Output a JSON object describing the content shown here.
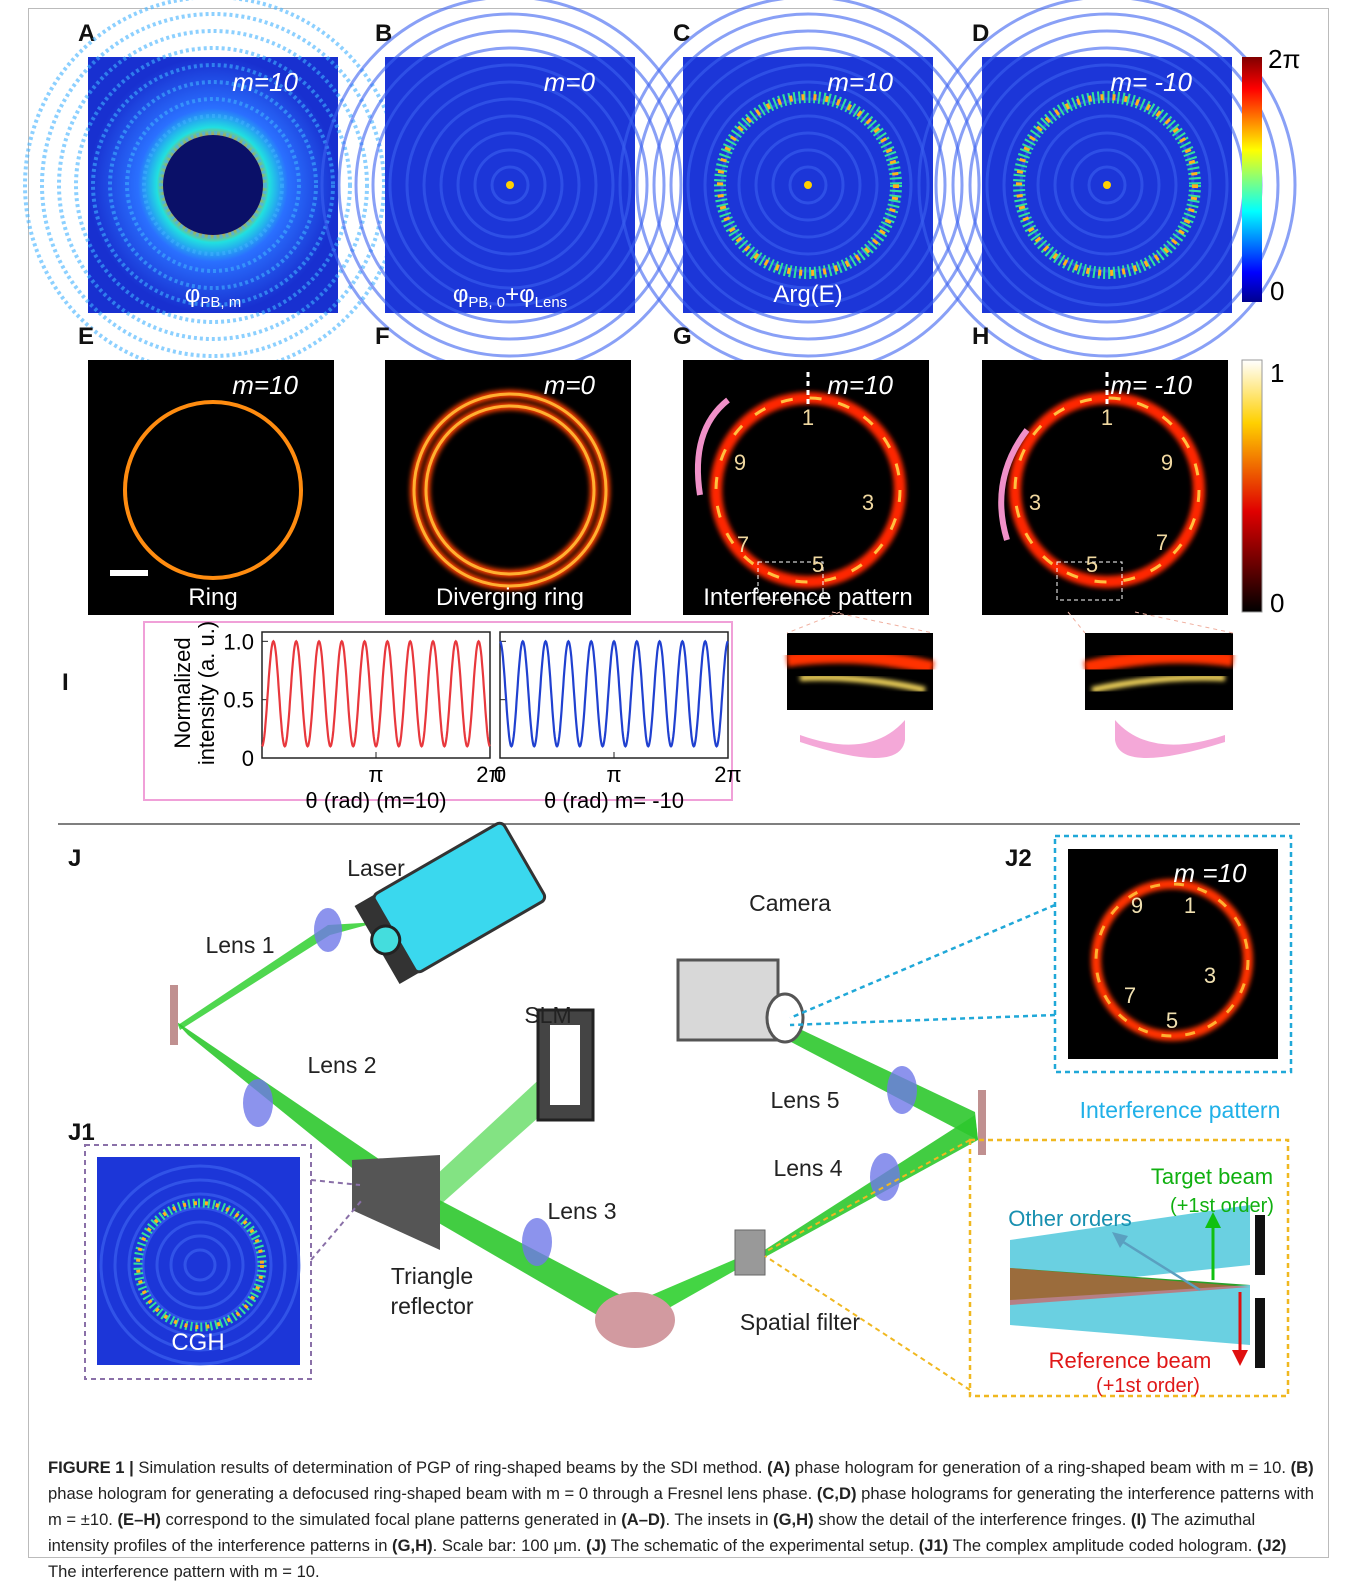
{
  "panels": [
    {
      "label": "A",
      "annotation": "m=10",
      "caption": [
        {
          "text": "φ"
        },
        {
          "sub": "PB, m"
        }
      ]
    },
    {
      "label": "B",
      "annotation": "m=0",
      "caption": [
        {
          "text": "φ"
        },
        {
          "sub": "PB, 0"
        },
        {
          "text": "+φ"
        },
        {
          "sub": "Lens"
        }
      ]
    },
    {
      "label": "C",
      "annotation": "m=10",
      "caption": [
        {
          "text": "Arg(E)"
        }
      ]
    },
    {
      "label": "D",
      "annotation": "m= -10",
      "caption": []
    },
    {
      "label": "E",
      "annotation": "m=10",
      "caption": [
        {
          "text": "Ring"
        }
      ]
    },
    {
      "label": "F",
      "annotation": "m=0",
      "caption": [
        {
          "text": "Diverging ring"
        }
      ]
    },
    {
      "label": "G",
      "annotation": "m=10",
      "caption": [
        {
          "text": "Interference pattern"
        }
      ],
      "numbers": [
        "1",
        "3",
        "5",
        "7",
        "9"
      ]
    },
    {
      "label": "H",
      "annotation": "m= -10",
      "caption": [],
      "numbers": [
        "1",
        "9",
        "7",
        "5",
        "3"
      ]
    }
  ],
  "colorbars": [
    {
      "max": "2π",
      "min": "0"
    },
    {
      "max": "1",
      "min": "0"
    }
  ],
  "panel_i": {
    "label": "I",
    "ylabel": [
      "Normalized",
      "intensity (a. u.)"
    ],
    "plots": [
      {
        "xlabel": "θ (rad)  (m=10)",
        "color": "#e8383d",
        "cycles": 10,
        "phase": 3.1416,
        "min": 0.1,
        "max": 1.0,
        "xlim": [
          0,
          6.2832
        ],
        "ylim": [
          0,
          1.08
        ],
        "xticks": [
          {
            "value": 3.1416,
            "label": "π"
          },
          {
            "value": 6.2832,
            "label": "2π"
          }
        ],
        "yticks": [
          0,
          {
            "value": 0.5,
            "label": "0.5"
          },
          {
            "value": 1,
            "label": "1.0"
          }
        ],
        "show_ytick_labels": true
      },
      {
        "xlabel": "θ (rad)  m= -10",
        "color": "#2040d0",
        "cycles": 10,
        "phase": 0,
        "min": 0.1,
        "max": 1.0,
        "xlim": [
          0,
          6.2832
        ],
        "ylim": [
          0,
          1.08
        ],
        "xticks": [
          0,
          {
            "value": 3.1416,
            "label": "π"
          },
          {
            "value": 6.2832,
            "label": "2π"
          }
        ],
        "yticks": [
          0,
          0.5,
          1
        ],
        "show_ytick_labels": false
      }
    ]
  },
  "setup": {
    "label": "J",
    "components": {
      "laser": "Laser",
      "lens1": "Lens 1",
      "lens2": "Lens 2",
      "lens3": "Lens 3",
      "lens4": "Lens 4",
      "lens5": "Lens 5",
      "slm": "SLM",
      "camera": "Camera",
      "triangle": [
        "Triangle",
        "reflector"
      ],
      "filter": "Spatial filter"
    },
    "j1": {
      "label": "J1",
      "caption": "CGH"
    },
    "j2": {
      "label": "J2",
      "annotation": "m =10",
      "numbers": [
        "1",
        "3",
        "5",
        "7",
        "9"
      ],
      "caption": "Interference pattern"
    },
    "filter_inset": {
      "target": [
        "Target beam",
        "(+1st order)"
      ],
      "other": "Other orders",
      "reference": [
        "Reference beam",
        "(+1st order)"
      ]
    }
  },
  "caption": [
    {
      "text": "FIGURE 1 |",
      "bold": true
    },
    {
      "text": " Simulation results of determination of PGP of ring-shaped beams by the SDI method. "
    },
    {
      "text": "(A)",
      "bold": true
    },
    {
      "text": " phase hologram for generation of a ring-shaped beam with m = 10. "
    },
    {
      "text": "(B)",
      "bold": true
    },
    {
      "text": " phase hologram for generating a defocused ring-shaped beam with m = 0 through a Fresnel lens phase. "
    },
    {
      "text": "(C,D)",
      "bold": true
    },
    {
      "text": " phase holograms for generating the interference patterns with m = ±10. "
    },
    {
      "text": "(E–H)",
      "bold": true
    },
    {
      "text": " correspond to the simulated focal plane patterns generated in "
    },
    {
      "text": "(A–D)",
      "bold": true
    },
    {
      "text": ". The insets in "
    },
    {
      "text": "(G,H)",
      "bold": true
    },
    {
      "text": " show the detail of the interference fringes. "
    },
    {
      "text": "(I)",
      "bold": true
    },
    {
      "text": " The azimuthal intensity profiles of the interference patterns in "
    },
    {
      "text": "(G,H)",
      "bold": true
    },
    {
      "text": ". Scale bar: 100 μm. "
    },
    {
      "text": "(J)",
      "bold": true
    },
    {
      "text": " The schematic of the experimental setup. "
    },
    {
      "text": "(J1)",
      "bold": true
    },
    {
      "text": " The complex amplitude coded hologram. "
    },
    {
      "text": "(J2)",
      "bold": true
    },
    {
      "text": " The interference pattern with m = 10."
    }
  ]
}
